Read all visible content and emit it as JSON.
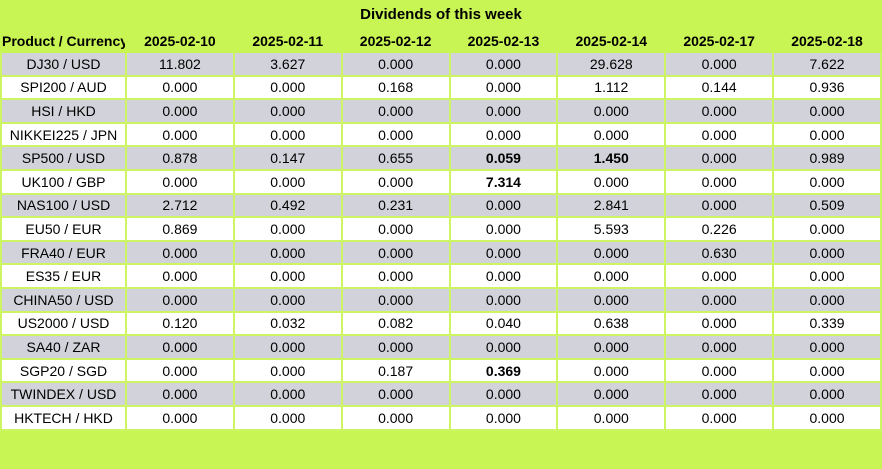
{
  "title": "Dividends of this week",
  "colors": {
    "header_green": "#c9f554",
    "gridline_green": "#cdf463",
    "row_gray": "#d2d3da",
    "row_white": "#ffffff",
    "text": "#000000"
  },
  "table": {
    "product_header": "Product / Currency",
    "date_headers": [
      "2025-02-10",
      "2025-02-11",
      "2025-02-12",
      "2025-02-13",
      "2025-02-14",
      "2025-02-17",
      "2025-02-18"
    ],
    "rows": [
      {
        "product": "DJ30 / USD",
        "values": [
          "11.802",
          "3.627",
          "0.000",
          "0.000",
          "29.628",
          "0.000",
          "7.622"
        ],
        "bold": []
      },
      {
        "product": "SPI200 / AUD",
        "values": [
          "0.000",
          "0.000",
          "0.168",
          "0.000",
          "1.112",
          "0.144",
          "0.936"
        ],
        "bold": []
      },
      {
        "product": "HSI / HKD",
        "values": [
          "0.000",
          "0.000",
          "0.000",
          "0.000",
          "0.000",
          "0.000",
          "0.000"
        ],
        "bold": []
      },
      {
        "product": "NIKKEI225 / JPN",
        "values": [
          "0.000",
          "0.000",
          "0.000",
          "0.000",
          "0.000",
          "0.000",
          "0.000"
        ],
        "bold": []
      },
      {
        "product": "SP500 / USD",
        "values": [
          "0.878",
          "0.147",
          "0.655",
          "0.059",
          "1.450",
          "0.000",
          "0.989"
        ],
        "bold": [
          3,
          4
        ]
      },
      {
        "product": "UK100 / GBP",
        "values": [
          "0.000",
          "0.000",
          "0.000",
          "7.314",
          "0.000",
          "0.000",
          "0.000"
        ],
        "bold": [
          3
        ]
      },
      {
        "product": "NAS100 / USD",
        "values": [
          "2.712",
          "0.492",
          "0.231",
          "0.000",
          "2.841",
          "0.000",
          "0.509"
        ],
        "bold": []
      },
      {
        "product": "EU50 / EUR",
        "values": [
          "0.869",
          "0.000",
          "0.000",
          "0.000",
          "5.593",
          "0.226",
          "0.000"
        ],
        "bold": []
      },
      {
        "product": "FRA40 / EUR",
        "values": [
          "0.000",
          "0.000",
          "0.000",
          "0.000",
          "0.000",
          "0.630",
          "0.000"
        ],
        "bold": []
      },
      {
        "product": "ES35 / EUR",
        "values": [
          "0.000",
          "0.000",
          "0.000",
          "0.000",
          "0.000",
          "0.000",
          "0.000"
        ],
        "bold": []
      },
      {
        "product": "CHINA50 / USD",
        "values": [
          "0.000",
          "0.000",
          "0.000",
          "0.000",
          "0.000",
          "0.000",
          "0.000"
        ],
        "bold": []
      },
      {
        "product": "US2000 / USD",
        "values": [
          "0.120",
          "0.032",
          "0.082",
          "0.040",
          "0.638",
          "0.000",
          "0.339"
        ],
        "bold": []
      },
      {
        "product": "SA40 / ZAR",
        "values": [
          "0.000",
          "0.000",
          "0.000",
          "0.000",
          "0.000",
          "0.000",
          "0.000"
        ],
        "bold": []
      },
      {
        "product": "SGP20 / SGD",
        "values": [
          "0.000",
          "0.000",
          "0.187",
          "0.369",
          "0.000",
          "0.000",
          "0.000"
        ],
        "bold": [
          3
        ]
      },
      {
        "product": "TWINDEX / USD",
        "values": [
          "0.000",
          "0.000",
          "0.000",
          "0.000",
          "0.000",
          "0.000",
          "0.000"
        ],
        "bold": []
      },
      {
        "product": "HKTECH / HKD",
        "values": [
          "0.000",
          "0.000",
          "0.000",
          "0.000",
          "0.000",
          "0.000",
          "0.000"
        ],
        "bold": []
      }
    ]
  }
}
